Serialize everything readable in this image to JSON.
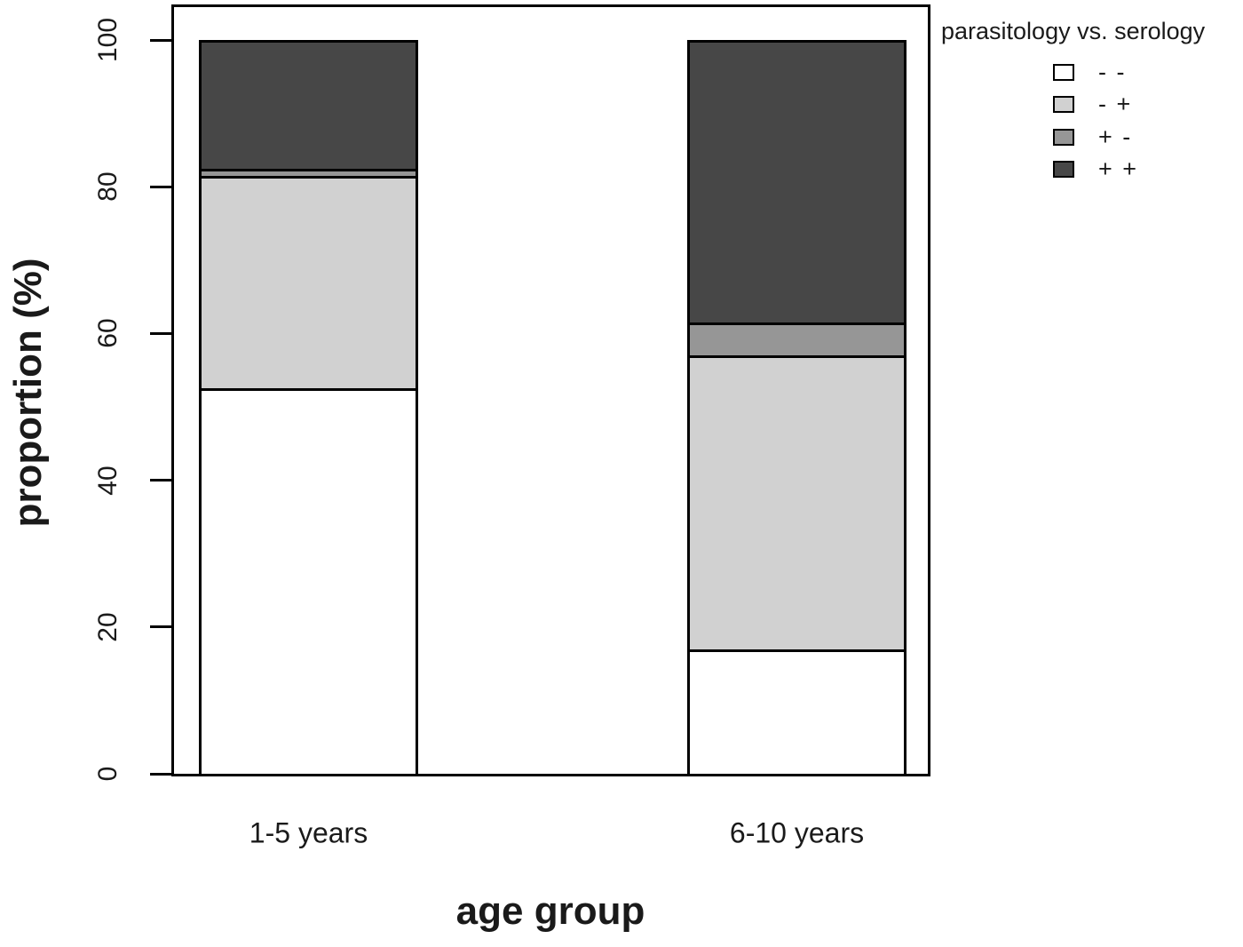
{
  "chart_data": {
    "type": "bar",
    "stacked": true,
    "orientation": "vertical",
    "title": "",
    "xlabel": "age group",
    "ylabel": "proportion (%)",
    "categories": [
      "1-5 years",
      "6-10 years"
    ],
    "series": [
      {
        "name": "- -",
        "color": "#FFFFFF",
        "values": [
          52.5,
          17
        ]
      },
      {
        "name": "- +",
        "color": "#D1D1D1",
        "values": [
          29,
          40
        ]
      },
      {
        "name": "+ -",
        "color": "#969696",
        "values": [
          1,
          4.5
        ]
      },
      {
        "name": "+ +",
        "color": "#474747",
        "values": [
          17.5,
          38.5
        ]
      }
    ],
    "ylim": [
      0,
      100
    ],
    "y_ticks": [
      0,
      20,
      40,
      60,
      80,
      100
    ],
    "grid": false,
    "bar_border_color": "#000000",
    "legend": {
      "title": "parasitology vs. serology",
      "position": "top-right-outside"
    }
  }
}
